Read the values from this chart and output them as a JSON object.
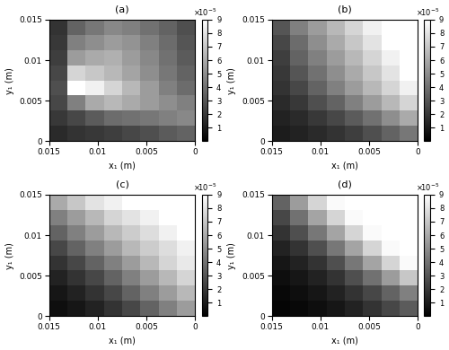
{
  "title_a": "(a)",
  "title_b": "(b)",
  "title_c": "(c)",
  "title_d": "(d)",
  "xlabel": "x₁ (m)",
  "ylabel": "y₁ (m)",
  "vmin": 0,
  "vmax": 9e-05,
  "xlim": [
    0.015,
    0
  ],
  "ylim": [
    0,
    0.015
  ],
  "xticks": [
    0.015,
    0.01,
    0.005,
    0
  ],
  "yticks": [
    0,
    0.005,
    0.01,
    0.015
  ],
  "n": 8,
  "figsize": [
    5.0,
    3.9
  ],
  "dpi": 100,
  "Za": [
    [
      1.5,
      1.8,
      2.0,
      2.2,
      2.5,
      2.8,
      3.2,
      3.5
    ],
    [
      2.0,
      2.5,
      3.2,
      3.8,
      4.0,
      4.2,
      4.5,
      4.8
    ],
    [
      2.5,
      4.5,
      6.0,
      6.5,
      6.0,
      5.5,
      5.0,
      4.5
    ],
    [
      2.8,
      9.0,
      8.5,
      7.5,
      6.5,
      5.5,
      4.5,
      3.8
    ],
    [
      2.5,
      7.5,
      7.0,
      6.5,
      5.8,
      5.0,
      4.2,
      3.5
    ],
    [
      2.2,
      5.5,
      6.0,
      6.2,
      5.5,
      4.8,
      4.0,
      3.2
    ],
    [
      2.0,
      4.5,
      5.0,
      5.5,
      5.2,
      4.5,
      3.8,
      3.0
    ],
    [
      1.8,
      3.5,
      4.2,
      4.8,
      4.5,
      4.0,
      3.5,
      2.8
    ]
  ],
  "Zb": [
    [
      1.0,
      1.2,
      1.5,
      1.8,
      2.2,
      2.8,
      3.5,
      4.2
    ],
    [
      1.2,
      1.5,
      2.0,
      2.5,
      3.2,
      4.0,
      5.0,
      6.0
    ],
    [
      1.5,
      2.0,
      2.8,
      3.5,
      4.5,
      5.5,
      6.5,
      7.5
    ],
    [
      1.8,
      2.5,
      3.5,
      4.5,
      5.5,
      6.5,
      7.5,
      8.5
    ],
    [
      2.0,
      3.0,
      4.0,
      5.0,
      6.0,
      7.0,
      8.0,
      9.0
    ],
    [
      2.2,
      3.5,
      4.5,
      5.5,
      6.5,
      7.5,
      8.5,
      9.0
    ],
    [
      2.5,
      3.8,
      5.0,
      6.0,
      7.0,
      8.0,
      9.0,
      9.0
    ],
    [
      3.0,
      4.5,
      5.5,
      6.5,
      7.5,
      8.5,
      9.0,
      9.0
    ]
  ],
  "Zc": [
    [
      0.5,
      0.8,
      1.2,
      1.8,
      2.5,
      3.5,
      4.5,
      5.5
    ],
    [
      0.8,
      1.2,
      1.8,
      2.5,
      3.5,
      4.5,
      5.5,
      6.5
    ],
    [
      1.2,
      1.8,
      2.5,
      3.5,
      4.5,
      5.5,
      6.5,
      7.5
    ],
    [
      1.8,
      2.5,
      3.5,
      4.5,
      5.5,
      6.5,
      7.5,
      8.2
    ],
    [
      2.5,
      3.5,
      4.5,
      5.5,
      6.5,
      7.2,
      7.8,
      8.5
    ],
    [
      3.5,
      4.5,
      5.5,
      6.5,
      7.2,
      7.8,
      8.5,
      9.0
    ],
    [
      4.5,
      5.5,
      6.5,
      7.5,
      8.0,
      8.5,
      9.0,
      9.0
    ],
    [
      6.0,
      7.0,
      8.0,
      8.5,
      9.0,
      9.0,
      9.0,
      9.0
    ]
  ],
  "Zd": [
    [
      0.2,
      0.3,
      0.5,
      0.8,
      1.2,
      1.8,
      2.5,
      3.2
    ],
    [
      0.3,
      0.5,
      0.8,
      1.2,
      1.8,
      2.5,
      3.5,
      4.5
    ],
    [
      0.5,
      0.8,
      1.2,
      1.8,
      2.8,
      4.0,
      5.5,
      7.0
    ],
    [
      0.8,
      1.2,
      1.8,
      2.8,
      4.2,
      5.8,
      7.5,
      8.8
    ],
    [
      1.2,
      1.8,
      2.8,
      4.2,
      5.8,
      7.5,
      8.8,
      9.0
    ],
    [
      1.8,
      2.8,
      4.2,
      5.8,
      7.5,
      8.8,
      9.0,
      9.0
    ],
    [
      2.5,
      4.0,
      5.8,
      7.5,
      8.8,
      9.0,
      9.0,
      9.0
    ],
    [
      3.5,
      5.5,
      7.5,
      8.8,
      9.0,
      9.0,
      9.0,
      9.0
    ]
  ]
}
